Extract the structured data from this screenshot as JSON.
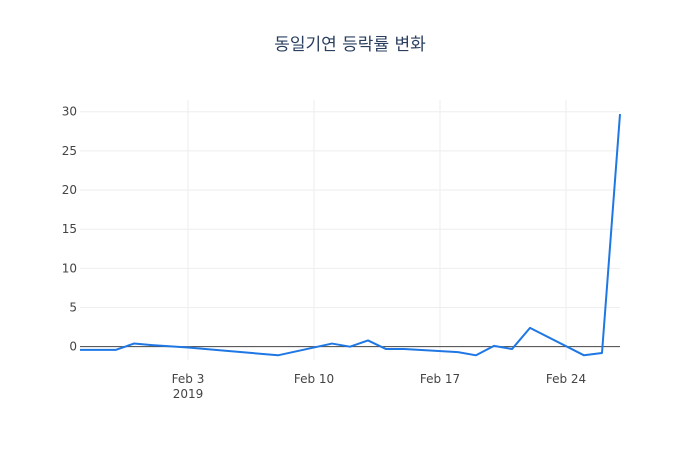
{
  "chart_data": {
    "type": "line",
    "title": "동일기연 등락률 변화",
    "xlabel": "",
    "ylabel": "",
    "x_range": [
      "2019-01-28",
      "2019-02-27"
    ],
    "ylim": [
      -1.7,
      31.5
    ],
    "grid": true,
    "x_ticks": [
      {
        "date": "2019-02-03",
        "label": "Feb 3",
        "sublabel": "2019"
      },
      {
        "date": "2019-02-10",
        "label": "Feb 10",
        "sublabel": ""
      },
      {
        "date": "2019-02-17",
        "label": "Feb 17",
        "sublabel": ""
      },
      {
        "date": "2019-02-24",
        "label": "Feb 24",
        "sublabel": ""
      }
    ],
    "y_ticks": [
      0,
      5,
      10,
      15,
      20,
      25,
      30
    ],
    "x": [
      "2019-01-28",
      "2019-01-29",
      "2019-01-30",
      "2019-01-31",
      "2019-02-01",
      "2019-02-03",
      "2019-02-05",
      "2019-02-08",
      "2019-02-11",
      "2019-02-12",
      "2019-02-13",
      "2019-02-14",
      "2019-02-15",
      "2019-02-18",
      "2019-02-19",
      "2019-02-20",
      "2019-02-21",
      "2019-02-22",
      "2019-02-25",
      "2019-02-26",
      "2019-02-27"
    ],
    "series": [
      {
        "values": [
          -0.4,
          -0.4,
          -0.4,
          0.4,
          0.2,
          -0.1,
          -0.5,
          -1.1,
          0.4,
          0.0,
          0.8,
          -0.3,
          -0.3,
          -0.7,
          -1.1,
          0.1,
          -0.3,
          2.4,
          -1.1,
          -0.8,
          29.7
        ],
        "color": "#1f77e4"
      }
    ]
  }
}
